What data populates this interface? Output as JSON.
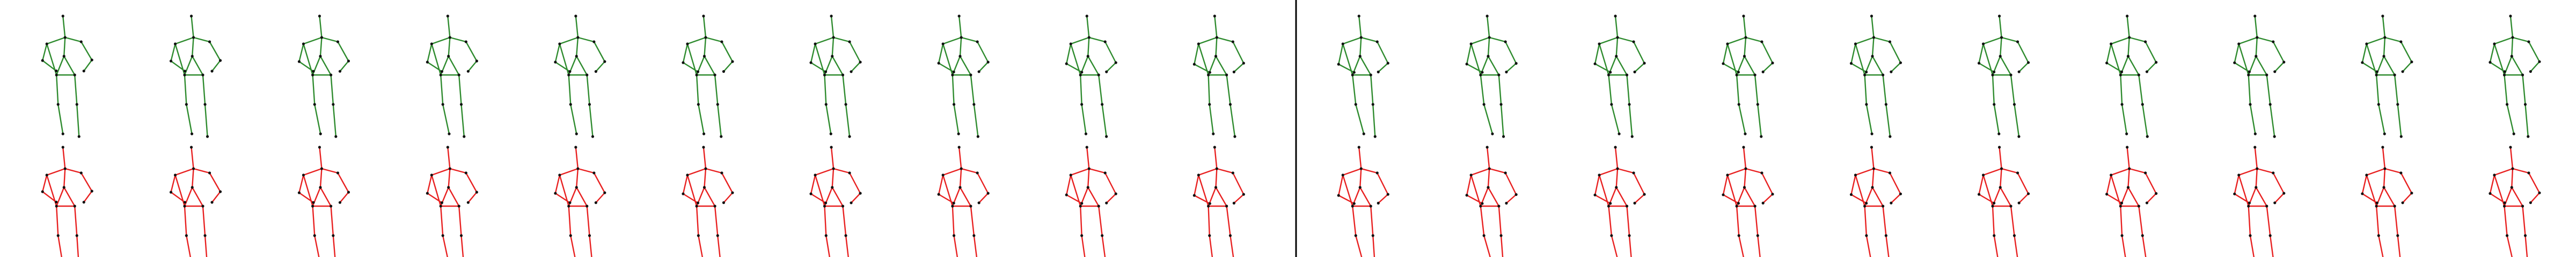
{
  "colors": {
    "background": "#ffffff",
    "predicted": "#2e8b2e",
    "ground_truth": "#e82020",
    "joints": "#111111",
    "divider": "#000000"
  },
  "panels": [
    {
      "frames": [
        {
          "lean": 0.0,
          "leftArm": 0.95,
          "rightArm": 0.9,
          "leftLeg": 0.05,
          "rightLeg": 0.0
        },
        {
          "lean": 0.02,
          "leftArm": 0.9,
          "rightArm": 0.85,
          "leftLeg": 0.08,
          "rightLeg": 0.02
        },
        {
          "lean": 0.03,
          "leftArm": 0.85,
          "rightArm": 0.8,
          "leftLeg": 0.1,
          "rightLeg": 0.04
        },
        {
          "lean": 0.04,
          "leftArm": 0.8,
          "rightArm": 0.8,
          "leftLeg": 0.12,
          "rightLeg": 0.05
        },
        {
          "lean": 0.04,
          "leftArm": 0.8,
          "rightArm": 0.75,
          "leftLeg": 0.1,
          "rightLeg": 0.08
        },
        {
          "lean": 0.03,
          "leftArm": 0.75,
          "rightArm": 0.75,
          "leftLeg": 0.08,
          "rightLeg": 0.1
        },
        {
          "lean": 0.02,
          "leftArm": 0.75,
          "rightArm": 0.7,
          "leftLeg": 0.05,
          "rightLeg": 0.12
        },
        {
          "lean": 0.01,
          "leftArm": 0.7,
          "rightArm": 0.7,
          "leftLeg": 0.04,
          "rightLeg": 0.14
        },
        {
          "lean": 0.0,
          "leftArm": 0.65,
          "rightArm": 0.65,
          "leftLeg": 0.02,
          "rightLeg": 0.16
        },
        {
          "lean": -0.01,
          "leftArm": 0.6,
          "rightArm": 0.6,
          "leftLeg": 0.0,
          "rightLeg": 0.18
        }
      ]
    },
    {
      "frames": [
        {
          "lean": 0.0,
          "leftArm": 0.6,
          "rightArm": 0.6,
          "leftLeg": 0.2,
          "rightLeg": 0.0
        },
        {
          "lean": 0.01,
          "leftArm": 0.62,
          "rightArm": 0.58,
          "leftLeg": 0.22,
          "rightLeg": 0.02
        },
        {
          "lean": 0.02,
          "leftArm": 0.64,
          "rightArm": 0.6,
          "leftLeg": 0.18,
          "rightLeg": 0.05
        },
        {
          "lean": 0.03,
          "leftArm": 0.66,
          "rightArm": 0.62,
          "leftLeg": 0.12,
          "rightLeg": 0.1
        },
        {
          "lean": 0.03,
          "leftArm": 0.68,
          "rightArm": 0.64,
          "leftLeg": 0.08,
          "rightLeg": 0.14
        },
        {
          "lean": 0.02,
          "leftArm": 0.7,
          "rightArm": 0.66,
          "leftLeg": 0.05,
          "rightLeg": 0.18
        },
        {
          "lean": 0.01,
          "leftArm": 0.72,
          "rightArm": 0.68,
          "leftLeg": 0.04,
          "rightLeg": 0.2
        },
        {
          "lean": 0.0,
          "leftArm": 0.74,
          "rightArm": 0.7,
          "leftLeg": 0.06,
          "rightLeg": 0.16
        },
        {
          "lean": -0.01,
          "leftArm": 0.76,
          "rightArm": 0.72,
          "leftLeg": 0.1,
          "rightLeg": 0.1
        },
        {
          "lean": -0.02,
          "leftArm": 0.78,
          "rightArm": 0.74,
          "leftLeg": 0.14,
          "rightLeg": 0.05
        }
      ]
    }
  ]
}
